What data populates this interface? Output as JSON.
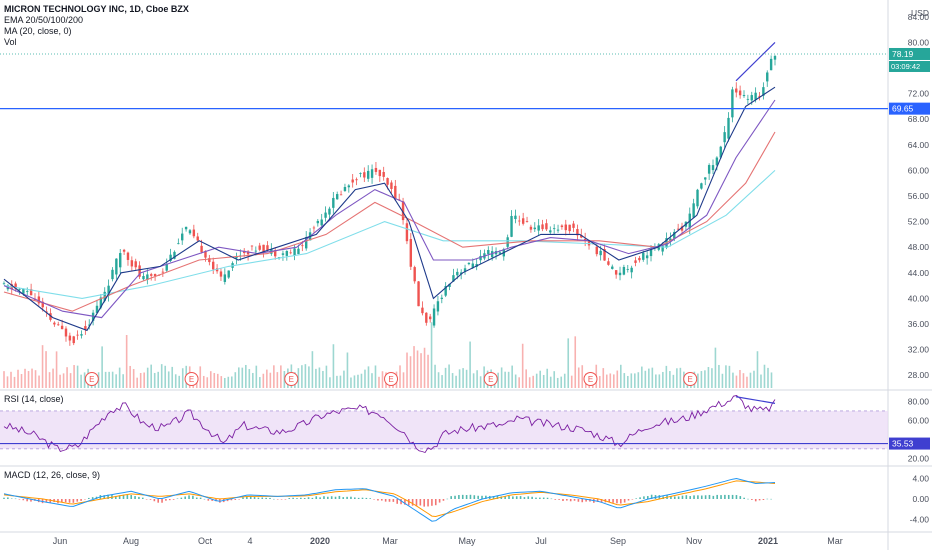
{
  "header": {
    "title": "MICRON TECHNOLOGY INC, 1D, Cboe BZX",
    "line2": "EMA 20/50/100/200",
    "line3": "MA (20, close, 0)",
    "line4": "Vol"
  },
  "colors": {
    "up": "#26a69a",
    "down": "#ef5350",
    "ema20": "#1e3a8a",
    "ema50": "#7e57c2",
    "ema100": "#e57373",
    "ema200": "#80deea",
    "ma20": "#78909c",
    "support": "#2962ff",
    "trend": "#3f3fd0",
    "rsi": "#7b1fa2",
    "rsi_band": "#e9d8f5",
    "macd": "#2196f3",
    "signal": "#ff9800"
  },
  "chart_data": {
    "type": "candlestick",
    "price_axis": {
      "unit_label": "USD",
      "ticks": [
        "84.00",
        "80.00",
        "72.00",
        "68.00",
        "64.00",
        "60.00",
        "56.00",
        "52.00",
        "48.00",
        "44.00",
        "40.00",
        "36.00",
        "32.00",
        "28.00"
      ],
      "range": [
        26,
        86
      ]
    },
    "last_price": "78.19",
    "countdown": "03:09:42",
    "support_level": "69.65",
    "x_labels": [
      "Jun",
      "Aug",
      "Oct",
      "4",
      "2020",
      "Mar",
      "May",
      "Jul",
      "Sep",
      "Nov",
      "2021",
      "Mar"
    ],
    "earnings_marker": "E",
    "earnings_count": 7,
    "price_path": [
      [
        0,
        42
      ],
      [
        6,
        41
      ],
      [
        11,
        36
      ],
      [
        15,
        33.5
      ],
      [
        18,
        36
      ],
      [
        22,
        42
      ],
      [
        25,
        48
      ],
      [
        29,
        43
      ],
      [
        33,
        44
      ],
      [
        38,
        51
      ],
      [
        42,
        47
      ],
      [
        45,
        43
      ],
      [
        49,
        47
      ],
      [
        53,
        48
      ],
      [
        57,
        47
      ],
      [
        61,
        47.5
      ],
      [
        65,
        52
      ],
      [
        69,
        56
      ],
      [
        73,
        59
      ],
      [
        77,
        60
      ],
      [
        79,
        58
      ],
      [
        82,
        55
      ],
      [
        84,
        46
      ],
      [
        86,
        38
      ],
      [
        88,
        36
      ],
      [
        90,
        40
      ],
      [
        93,
        44
      ],
      [
        96,
        45
      ],
      [
        100,
        47
      ],
      [
        103,
        47
      ],
      [
        105,
        53
      ],
      [
        109,
        51
      ],
      [
        113,
        51
      ],
      [
        117,
        51
      ],
      [
        120,
        49
      ],
      [
        123,
        47
      ],
      [
        126,
        44
      ],
      [
        129,
        45
      ],
      [
        132,
        47
      ],
      [
        135,
        48
      ],
      [
        138,
        50
      ],
      [
        141,
        52
      ],
      [
        144,
        59
      ],
      [
        147,
        62
      ],
      [
        149,
        67
      ],
      [
        150,
        73
      ],
      [
        153,
        71
      ],
      [
        156,
        72
      ],
      [
        158,
        78
      ]
    ],
    "ema20_path": [
      [
        0,
        43
      ],
      [
        10,
        37
      ],
      [
        17,
        35
      ],
      [
        24,
        44
      ],
      [
        32,
        45
      ],
      [
        40,
        49
      ],
      [
        48,
        46
      ],
      [
        56,
        48
      ],
      [
        64,
        50
      ],
      [
        72,
        57
      ],
      [
        78,
        58
      ],
      [
        83,
        52
      ],
      [
        88,
        40
      ],
      [
        94,
        44
      ],
      [
        102,
        47
      ],
      [
        110,
        50
      ],
      [
        118,
        50
      ],
      [
        126,
        46
      ],
      [
        134,
        48
      ],
      [
        142,
        53
      ],
      [
        148,
        64
      ],
      [
        152,
        70
      ],
      [
        158,
        73
      ]
    ],
    "ema50_path": [
      [
        0,
        42
      ],
      [
        12,
        38
      ],
      [
        20,
        37
      ],
      [
        28,
        44
      ],
      [
        36,
        46
      ],
      [
        44,
        48
      ],
      [
        52,
        47
      ],
      [
        60,
        48
      ],
      [
        68,
        53
      ],
      [
        76,
        57
      ],
      [
        82,
        55
      ],
      [
        88,
        46
      ],
      [
        96,
        46
      ],
      [
        104,
        48
      ],
      [
        112,
        49.5
      ],
      [
        120,
        49
      ],
      [
        128,
        47
      ],
      [
        136,
        48.5
      ],
      [
        144,
        53
      ],
      [
        150,
        62
      ],
      [
        158,
        71
      ]
    ],
    "ema100_path": [
      [
        0,
        41
      ],
      [
        14,
        38
      ],
      [
        26,
        42
      ],
      [
        40,
        46
      ],
      [
        54,
        47
      ],
      [
        66,
        50
      ],
      [
        76,
        55
      ],
      [
        84,
        52
      ],
      [
        94,
        48
      ],
      [
        108,
        49
      ],
      [
        122,
        49
      ],
      [
        134,
        48
      ],
      [
        144,
        52
      ],
      [
        152,
        58
      ],
      [
        158,
        66
      ]
    ],
    "ema200_path": [
      [
        0,
        42
      ],
      [
        16,
        40
      ],
      [
        30,
        42
      ],
      [
        46,
        45
      ],
      [
        62,
        47
      ],
      [
        78,
        52
      ],
      [
        90,
        49
      ],
      [
        106,
        49
      ],
      [
        122,
        48.5
      ],
      [
        136,
        48
      ],
      [
        148,
        53
      ],
      [
        158,
        60
      ]
    ],
    "trendline_price": [
      [
        150,
        74
      ],
      [
        158,
        80
      ]
    ],
    "rsi": {
      "label": "RSI (14, close)",
      "ticks": [
        "80.00",
        "60.00",
        "20.00"
      ],
      "range": [
        15,
        90
      ],
      "band": [
        30,
        70
      ],
      "level": "35.53",
      "path": [
        [
          0,
          55
        ],
        [
          6,
          45
        ],
        [
          11,
          30
        ],
        [
          15,
          32
        ],
        [
          18,
          50
        ],
        [
          22,
          72
        ],
        [
          25,
          75
        ],
        [
          29,
          55
        ],
        [
          33,
          52
        ],
        [
          38,
          68
        ],
        [
          42,
          50
        ],
        [
          45,
          35
        ],
        [
          49,
          55
        ],
        [
          53,
          50
        ],
        [
          57,
          48
        ],
        [
          61,
          55
        ],
        [
          65,
          65
        ],
        [
          69,
          70
        ],
        [
          73,
          72
        ],
        [
          77,
          68
        ],
        [
          79,
          60
        ],
        [
          82,
          48
        ],
        [
          84,
          35
        ],
        [
          86,
          30
        ],
        [
          88,
          32
        ],
        [
          90,
          45
        ],
        [
          93,
          50
        ],
        [
          96,
          52
        ],
        [
          100,
          55
        ],
        [
          103,
          55
        ],
        [
          105,
          62
        ],
        [
          109,
          58
        ],
        [
          113,
          55
        ],
        [
          117,
          52
        ],
        [
          120,
          48
        ],
        [
          123,
          42
        ],
        [
          126,
          35
        ],
        [
          129,
          45
        ],
        [
          132,
          55
        ],
        [
          135,
          58
        ],
        [
          138,
          60
        ],
        [
          141,
          65
        ],
        [
          144,
          72
        ],
        [
          147,
          78
        ],
        [
          149,
          82
        ],
        [
          150,
          85
        ],
        [
          153,
          72
        ],
        [
          156,
          70
        ],
        [
          158,
          78
        ]
      ],
      "trendline": [
        [
          150,
          85
        ],
        [
          158,
          78
        ]
      ]
    },
    "macd": {
      "label": "MACD (12, 26, close, 9)",
      "ticks": [
        "4.00",
        "0.00",
        "-4.00"
      ],
      "range": [
        -6,
        6
      ],
      "macd_path": [
        [
          0,
          1
        ],
        [
          8,
          -0.5
        ],
        [
          14,
          -1.5
        ],
        [
          20,
          0.5
        ],
        [
          26,
          1.5
        ],
        [
          32,
          0
        ],
        [
          38,
          1.5
        ],
        [
          44,
          -0.5
        ],
        [
          50,
          0.8
        ],
        [
          56,
          0.5
        ],
        [
          62,
          0.8
        ],
        [
          68,
          1.8
        ],
        [
          74,
          2
        ],
        [
          80,
          0.5
        ],
        [
          84,
          -2
        ],
        [
          88,
          -4.5
        ],
        [
          92,
          -2
        ],
        [
          98,
          0
        ],
        [
          104,
          1.2
        ],
        [
          110,
          1.5
        ],
        [
          116,
          0.5
        ],
        [
          122,
          -0.5
        ],
        [
          126,
          -1.8
        ],
        [
          132,
          0
        ],
        [
          138,
          1.2
        ],
        [
          144,
          2.5
        ],
        [
          150,
          4
        ],
        [
          154,
          3
        ],
        [
          158,
          3.2
        ]
      ],
      "signal_path": [
        [
          0,
          0.8
        ],
        [
          8,
          0
        ],
        [
          14,
          -1
        ],
        [
          20,
          0
        ],
        [
          26,
          1
        ],
        [
          32,
          0.5
        ],
        [
          38,
          1
        ],
        [
          44,
          0
        ],
        [
          50,
          0.5
        ],
        [
          56,
          0.5
        ],
        [
          62,
          0.6
        ],
        [
          68,
          1.4
        ],
        [
          74,
          1.8
        ],
        [
          80,
          1
        ],
        [
          84,
          -1
        ],
        [
          88,
          -3.5
        ],
        [
          92,
          -2.5
        ],
        [
          98,
          -0.5
        ],
        [
          104,
          0.8
        ],
        [
          110,
          1.3
        ],
        [
          116,
          0.8
        ],
        [
          122,
          0
        ],
        [
          126,
          -1.2
        ],
        [
          132,
          -0.5
        ],
        [
          138,
          0.8
        ],
        [
          144,
          2
        ],
        [
          150,
          3.5
        ],
        [
          154,
          3.3
        ],
        [
          158,
          3
        ]
      ]
    }
  }
}
